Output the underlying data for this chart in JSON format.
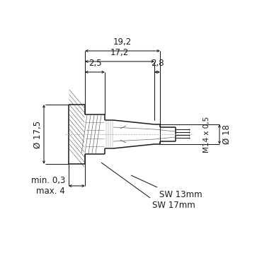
{
  "bg_color": "#ffffff",
  "line_color": "#1a1a1a",
  "dim_color": "#1a1a1a",
  "dim_19_2": "19,2",
  "dim_17_2": "17,2",
  "dim_2_5": "2,5",
  "dim_2_8": "2,8",
  "dim_17_5": "Ø 17,5",
  "dim_18": "Ø 18",
  "dim_m14": "M14 x 0,5",
  "dim_min": "min. 0,3",
  "dim_max": "max. 4",
  "dim_sw13": "SW 13mm",
  "dim_sw17": "SW 17mm"
}
